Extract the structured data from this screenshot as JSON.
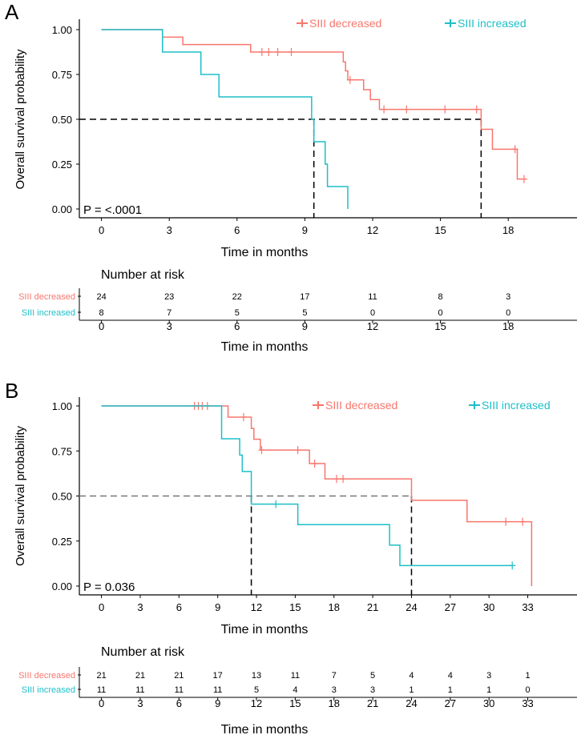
{
  "colors": {
    "decreased": "#F8766D",
    "increased": "#1EBFC8",
    "axis": "#000000"
  },
  "chart_data": [
    {
      "type": "line",
      "panel": "A",
      "ylabel": "Overall survival probability",
      "xlabel": "Time in months",
      "pvalue": "P = <.0001",
      "xticks": [
        0,
        3,
        6,
        9,
        12,
        15,
        18
      ],
      "yticks": [
        "0.00",
        "0.25",
        "0.50",
        "0.75",
        "1.00"
      ],
      "xlim": [
        0,
        21
      ],
      "ylim": [
        0,
        1
      ],
      "legend": [
        "SIII decreased",
        "SIII increased"
      ],
      "legend_position": "top-right",
      "medians": [
        9.4,
        16.8
      ],
      "series": [
        {
          "name": "SIII decreased",
          "steps": [
            [
              0,
              1
            ],
            [
              2.7,
              0.958
            ],
            [
              3.6,
              0.917
            ],
            [
              6.6,
              0.875
            ],
            [
              10.7,
              0.82
            ],
            [
              10.8,
              0.77
            ],
            [
              10.9,
              0.72
            ],
            [
              11.6,
              0.665
            ],
            [
              11.9,
              0.61
            ],
            [
              12.3,
              0.555
            ],
            [
              16.8,
              0.444
            ],
            [
              17.3,
              0.333
            ],
            [
              18.4,
              0.167
            ],
            [
              18.7,
              0.167
            ]
          ],
          "censored": [
            7.1,
            7.4,
            7.8,
            8.4,
            11.0,
            12.5,
            13.5,
            15.2,
            16.6,
            18.3,
            18.7
          ]
        },
        {
          "name": "SIII increased",
          "steps": [
            [
              0,
              1
            ],
            [
              2.7,
              0.875
            ],
            [
              4.4,
              0.75
            ],
            [
              5.2,
              0.625
            ],
            [
              9.3,
              0.5
            ],
            [
              9.4,
              0.375
            ],
            [
              9.9,
              0.25
            ],
            [
              10.0,
              0.125
            ],
            [
              10.9,
              0
            ],
            [
              10.9,
              0
            ]
          ],
          "censored": []
        }
      ],
      "risk_table": {
        "title": "Number at risk",
        "xlabel": "Time in months",
        "rows": [
          {
            "label": "SIII decreased",
            "values": [
              "24",
              "23",
              "22",
              "17",
              "11",
              "8",
              "3"
            ]
          },
          {
            "label": "SIII increased",
            "values": [
              "8",
              "7",
              "5",
              "5",
              "0",
              "0",
              "0"
            ]
          }
        ]
      }
    },
    {
      "type": "line",
      "panel": "B",
      "ylabel": "Overall survival probability",
      "xlabel": "Time in months",
      "pvalue": "P = 0.036",
      "xticks": [
        0,
        3,
        6,
        9,
        12,
        15,
        18,
        21,
        24,
        27,
        30,
        33
      ],
      "yticks": [
        "0.00",
        "0.25",
        "0.50",
        "0.75",
        "1.00"
      ],
      "xlim": [
        0,
        36
      ],
      "ylim": [
        0,
        1
      ],
      "legend": [
        "SIII decreased",
        "SIII increased"
      ],
      "legend_position": "top-right",
      "medians": [
        11.6,
        24
      ],
      "series": [
        {
          "name": "SIII decreased",
          "steps": [
            [
              0,
              1
            ],
            [
              9.8,
              0.938
            ],
            [
              11.6,
              0.875
            ],
            [
              11.8,
              0.815
            ],
            [
              12.3,
              0.755
            ],
            [
              16.1,
              0.68
            ],
            [
              17.3,
              0.595
            ],
            [
              24,
              0.476
            ],
            [
              28.3,
              0.357
            ],
            [
              33.3,
              0
            ],
            [
              33.3,
              0
            ]
          ],
          "censored": [
            7.2,
            7.5,
            7.8,
            8.2,
            11.0,
            12.4,
            15.2,
            16.5,
            18.2,
            18.7,
            31.3,
            32.6
          ]
        },
        {
          "name": "SIII increased",
          "steps": [
            [
              0,
              1
            ],
            [
              9.3,
              0.818
            ],
            [
              10.7,
              0.727
            ],
            [
              10.9,
              0.636
            ],
            [
              11.6,
              0.455
            ],
            [
              15.2,
              0.341
            ],
            [
              22.3,
              0.227
            ],
            [
              23.1,
              0.114
            ],
            [
              31.8,
              0.114
            ]
          ],
          "censored": [
            13.5,
            31.8
          ]
        }
      ],
      "risk_table": {
        "title": "Number at risk",
        "xlabel": "Time in months",
        "rows": [
          {
            "label": "SIII decreased",
            "values": [
              "21",
              "21",
              "21",
              "17",
              "13",
              "11",
              "7",
              "5",
              "4",
              "4",
              "3",
              "1"
            ]
          },
          {
            "label": "SIII increased",
            "values": [
              "11",
              "11",
              "11",
              "11",
              "5",
              "4",
              "3",
              "3",
              "1",
              "1",
              "1",
              "0"
            ]
          }
        ]
      }
    }
  ]
}
